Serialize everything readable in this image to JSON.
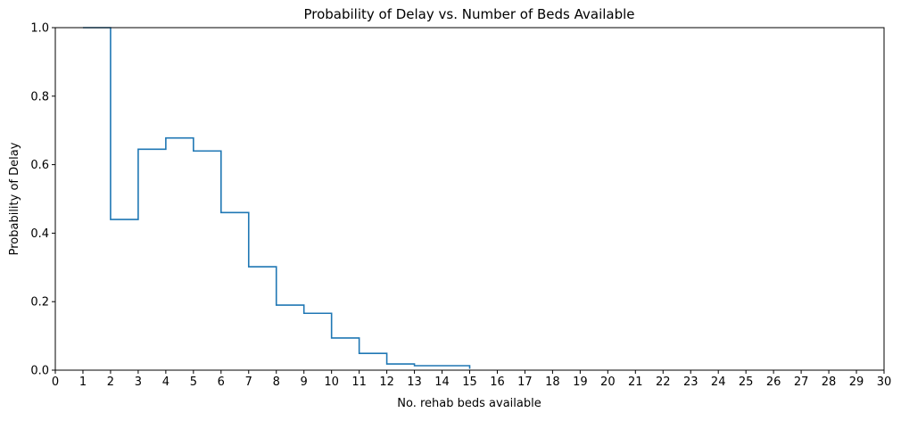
{
  "chart_data": {
    "type": "line",
    "style": "step",
    "title": "Probability of Delay vs. Number of Beds Available",
    "xlabel": "No. rehab beds available",
    "ylabel": "Probability of Delay",
    "xlim": [
      0,
      30
    ],
    "ylim": [
      0,
      1.0
    ],
    "x_ticks": [
      0,
      1,
      2,
      3,
      4,
      5,
      6,
      7,
      8,
      9,
      10,
      11,
      12,
      13,
      14,
      15,
      16,
      17,
      18,
      19,
      20,
      21,
      22,
      23,
      24,
      25,
      26,
      27,
      28,
      29,
      30
    ],
    "y_ticks": [
      0.0,
      0.2,
      0.4,
      0.6,
      0.8,
      1.0
    ],
    "y_tick_labels": [
      "0.0",
      "0.2",
      "0.4",
      "0.6",
      "0.8",
      "1.0"
    ],
    "grid": false,
    "series": [
      {
        "color": "#1f77b4",
        "x": [
          1,
          2,
          3,
          4,
          5,
          6,
          7,
          8,
          9,
          10,
          11,
          12,
          13,
          14,
          15
        ],
        "y": [
          1.0,
          0.44,
          0.645,
          0.678,
          0.64,
          0.46,
          0.302,
          0.19,
          0.166,
          0.094,
          0.049,
          0.018,
          0.013,
          0.013,
          0.004
        ]
      }
    ]
  }
}
